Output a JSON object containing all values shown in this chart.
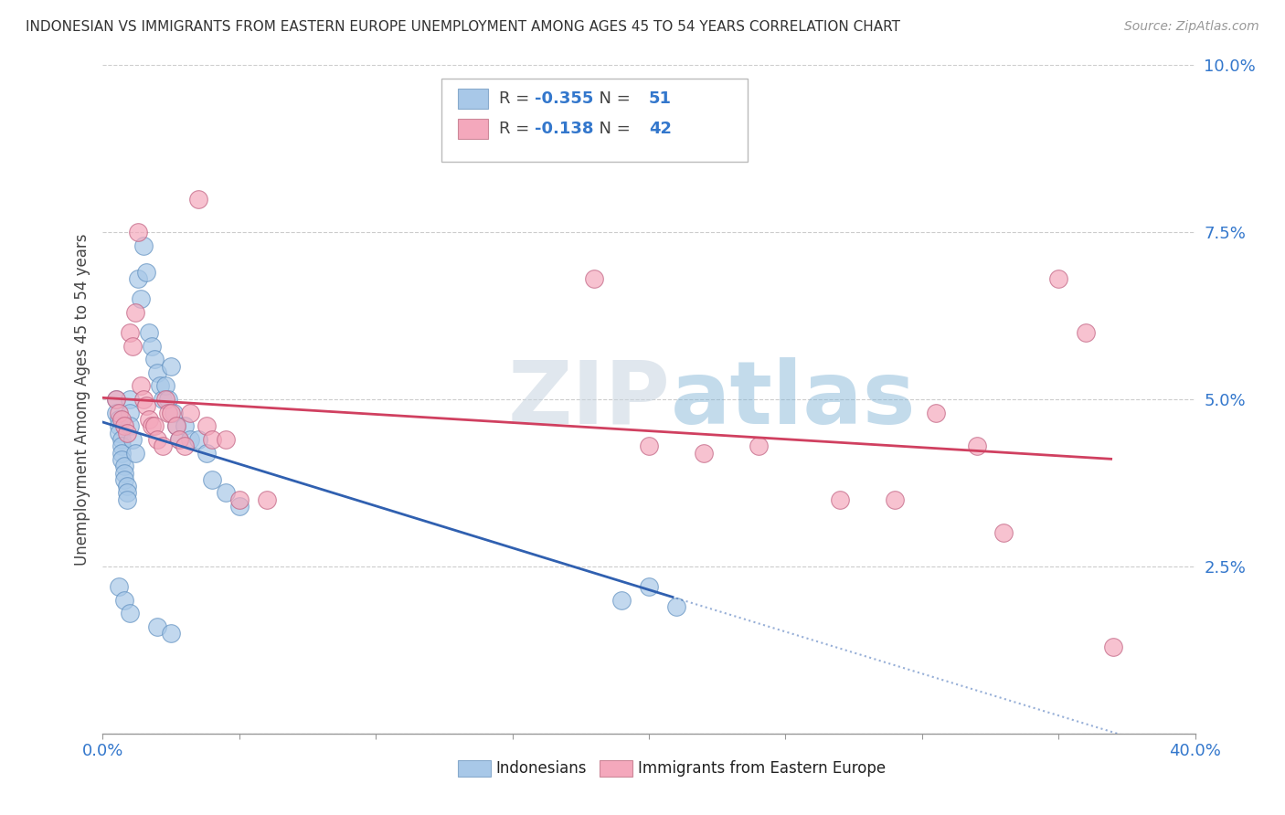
{
  "title": "INDONESIAN VS IMMIGRANTS FROM EASTERN EUROPE UNEMPLOYMENT AMONG AGES 45 TO 54 YEARS CORRELATION CHART",
  "source": "Source: ZipAtlas.com",
  "ylabel": "Unemployment Among Ages 45 to 54 years",
  "xlim": [
    0.0,
    0.4
  ],
  "ylim": [
    0.0,
    0.1
  ],
  "xticks": [
    0.0,
    0.05,
    0.1,
    0.15,
    0.2,
    0.25,
    0.3,
    0.35,
    0.4
  ],
  "xticklabels": [
    "0.0%",
    "",
    "",
    "",
    "",
    "",
    "",
    "",
    "40.0%"
  ],
  "yticks": [
    0.0,
    0.025,
    0.05,
    0.075,
    0.1
  ],
  "yticklabels": [
    "",
    "2.5%",
    "5.0%",
    "7.5%",
    "10.0%"
  ],
  "blue_R": -0.355,
  "blue_N": 51,
  "pink_R": -0.138,
  "pink_N": 42,
  "blue_color": "#a8c8e8",
  "pink_color": "#f4a8bc",
  "blue_line_color": "#3060b0",
  "pink_line_color": "#d04060",
  "watermark": "ZIPatlas",
  "blue_points": [
    [
      0.005,
      0.05
    ],
    [
      0.005,
      0.048
    ],
    [
      0.006,
      0.047
    ],
    [
      0.006,
      0.046
    ],
    [
      0.006,
      0.045
    ],
    [
      0.007,
      0.044
    ],
    [
      0.007,
      0.043
    ],
    [
      0.007,
      0.042
    ],
    [
      0.007,
      0.041
    ],
    [
      0.008,
      0.04
    ],
    [
      0.008,
      0.039
    ],
    [
      0.008,
      0.038
    ],
    [
      0.009,
      0.037
    ],
    [
      0.009,
      0.036
    ],
    [
      0.009,
      0.035
    ],
    [
      0.01,
      0.05
    ],
    [
      0.01,
      0.048
    ],
    [
      0.01,
      0.046
    ],
    [
      0.011,
      0.044
    ],
    [
      0.012,
      0.042
    ],
    [
      0.013,
      0.068
    ],
    [
      0.014,
      0.065
    ],
    [
      0.015,
      0.073
    ],
    [
      0.016,
      0.069
    ],
    [
      0.017,
      0.06
    ],
    [
      0.018,
      0.058
    ],
    [
      0.019,
      0.056
    ],
    [
      0.02,
      0.054
    ],
    [
      0.021,
      0.052
    ],
    [
      0.022,
      0.05
    ],
    [
      0.023,
      0.052
    ],
    [
      0.024,
      0.05
    ],
    [
      0.025,
      0.055
    ],
    [
      0.026,
      0.048
    ],
    [
      0.027,
      0.046
    ],
    [
      0.028,
      0.044
    ],
    [
      0.03,
      0.046
    ],
    [
      0.032,
      0.044
    ],
    [
      0.035,
      0.044
    ],
    [
      0.038,
      0.042
    ],
    [
      0.04,
      0.038
    ],
    [
      0.045,
      0.036
    ],
    [
      0.05,
      0.034
    ],
    [
      0.006,
      0.022
    ],
    [
      0.008,
      0.02
    ],
    [
      0.01,
      0.018
    ],
    [
      0.02,
      0.016
    ],
    [
      0.025,
      0.015
    ],
    [
      0.19,
      0.02
    ],
    [
      0.2,
      0.022
    ],
    [
      0.21,
      0.019
    ]
  ],
  "pink_points": [
    [
      0.005,
      0.05
    ],
    [
      0.006,
      0.048
    ],
    [
      0.007,
      0.047
    ],
    [
      0.008,
      0.046
    ],
    [
      0.009,
      0.045
    ],
    [
      0.01,
      0.06
    ],
    [
      0.011,
      0.058
    ],
    [
      0.012,
      0.063
    ],
    [
      0.013,
      0.075
    ],
    [
      0.014,
      0.052
    ],
    [
      0.015,
      0.05
    ],
    [
      0.016,
      0.049
    ],
    [
      0.017,
      0.047
    ],
    [
      0.018,
      0.046
    ],
    [
      0.019,
      0.046
    ],
    [
      0.02,
      0.044
    ],
    [
      0.022,
      0.043
    ],
    [
      0.023,
      0.05
    ],
    [
      0.024,
      0.048
    ],
    [
      0.025,
      0.048
    ],
    [
      0.027,
      0.046
    ],
    [
      0.028,
      0.044
    ],
    [
      0.03,
      0.043
    ],
    [
      0.032,
      0.048
    ],
    [
      0.035,
      0.08
    ],
    [
      0.038,
      0.046
    ],
    [
      0.04,
      0.044
    ],
    [
      0.045,
      0.044
    ],
    [
      0.05,
      0.035
    ],
    [
      0.06,
      0.035
    ],
    [
      0.18,
      0.068
    ],
    [
      0.2,
      0.043
    ],
    [
      0.22,
      0.042
    ],
    [
      0.24,
      0.043
    ],
    [
      0.27,
      0.035
    ],
    [
      0.29,
      0.035
    ],
    [
      0.305,
      0.048
    ],
    [
      0.32,
      0.043
    ],
    [
      0.33,
      0.03
    ],
    [
      0.35,
      0.068
    ],
    [
      0.36,
      0.06
    ],
    [
      0.37,
      0.013
    ]
  ]
}
